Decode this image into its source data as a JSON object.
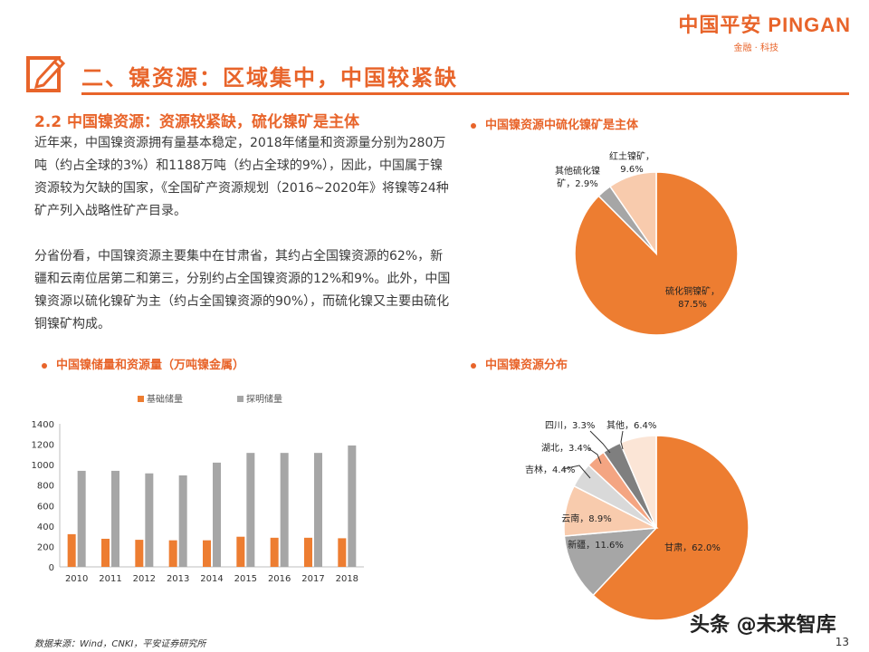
{
  "logo": {
    "main": "中国平安 PINGAN",
    "sub": "金融 · 科技"
  },
  "header": {
    "title": "二、镍资源：区域集中，中国较紧缺",
    "icon": "pencil-square-icon"
  },
  "section_title": "2.2 中国镍资源：资源较紧缺，硫化镍矿是主体",
  "paragraph1": "近年来，中国镍资源拥有量基本稳定，2018年储量和资源量分别为280万吨（约占全球的3%）和1188万吨（约占全球的9%），因此，中国属于镍资源较为欠缺的国家，《全国矿产资源规划（2016~2020年》将镍等24种矿产列入战略性矿产目录。",
  "paragraph2": "分省份看，中国镍资源主要集中在甘肃省，其约占全国镍资源的62%，新疆和云南位居第二和第三，分别约占全国镍资源的12%和9%。此外，中国镍资源以硫化镍矿为主（约占全国镍资源的90%），而硫化镍又主要由硫化铜镍矿构成。",
  "chart_titles": {
    "bar": "中国镍储量和资源量（万吨镍金属）",
    "pie1": "中国镍资源中硫化镍矿是主体",
    "pie2": "中国镍资源分布"
  },
  "footer": {
    "source": "数据来源：Wind，CNKI，平安证券研究所",
    "page": "13",
    "watermark": "头条 @未来智库"
  },
  "colors": {
    "accent": "#e8642a",
    "gray_bar": "#a6a6a6"
  },
  "chart_data": [
    {
      "type": "bar",
      "title": "中国镍储量和资源量（万吨镍金属）",
      "categories": [
        "2010",
        "2011",
        "2012",
        "2013",
        "2014",
        "2015",
        "2016",
        "2017",
        "2018"
      ],
      "series": [
        {
          "name": "基础储量",
          "color": "#ed7d31",
          "values": [
            320,
            275,
            265,
            260,
            260,
            295,
            285,
            285,
            280
          ]
        },
        {
          "name": "探明储量",
          "color": "#a6a6a6",
          "values": [
            940,
            940,
            915,
            895,
            1020,
            1115,
            1115,
            1115,
            1188
          ]
        }
      ],
      "ylim": [
        0,
        1400
      ],
      "yticks": [
        "0",
        "200",
        "400",
        "600",
        "800",
        "1000",
        "1200",
        "1400"
      ],
      "legend": "top",
      "grid": false
    },
    {
      "type": "pie",
      "title": "中国镍资源中硫化镍矿是主体",
      "slices": [
        {
          "name": "硫化铜镍矿",
          "label": "87.5%",
          "value": 87.5,
          "color": "#ed7d31"
        },
        {
          "name": "其他硫化镍矿",
          "label": "2.9%",
          "value": 2.9,
          "color": "#a6a6a6"
        },
        {
          "name": "红土镍矿",
          "label": "9.6%",
          "value": 9.6,
          "color": "#f8cbad"
        }
      ]
    },
    {
      "type": "pie",
      "title": "中国镍资源分布",
      "slices": [
        {
          "name": "甘肃",
          "label": "62.0%",
          "value": 62.0,
          "color": "#ed7d31"
        },
        {
          "name": "新疆",
          "label": "11.6%",
          "value": 11.6,
          "color": "#a6a6a6"
        },
        {
          "name": "云南",
          "label": "8.9%",
          "value": 8.9,
          "color": "#f8cbad"
        },
        {
          "name": "吉林",
          "label": "4.4%",
          "value": 4.4,
          "color": "#d9d9d9"
        },
        {
          "name": "湖北",
          "label": "3.4%",
          "value": 3.4,
          "color": "#f4a582"
        },
        {
          "name": "四川",
          "label": "3.3%",
          "value": 3.3,
          "color": "#7f7f7f"
        },
        {
          "name": "其他",
          "label": "6.4%",
          "value": 6.4,
          "color": "#fbe5d6"
        }
      ]
    }
  ]
}
